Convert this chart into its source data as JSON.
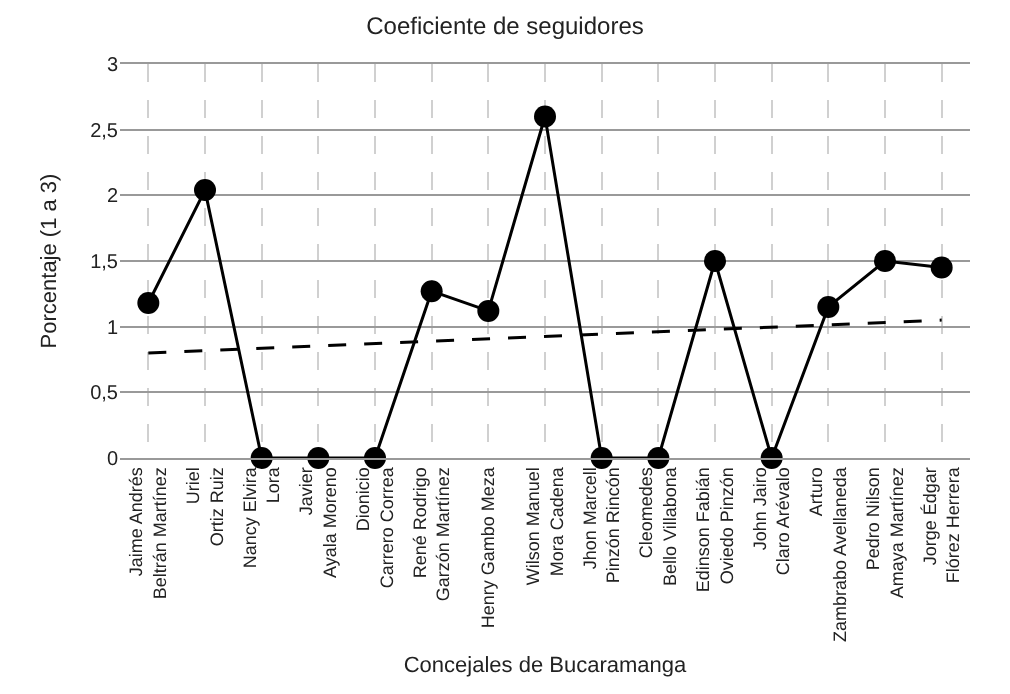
{
  "chart_data": {
    "type": "line",
    "title": "Coeficiente de seguidores",
    "xlabel": "Concejales de Bucaramanga",
    "ylabel": "Porcentaje (1 a 3)",
    "categories": [
      "Jaime Andrés\nBeltrán Martínez",
      "Uriel\nOrtiz Ruiz",
      "Nancy Elvira\nLora",
      "Javier\nAyala Moreno",
      "Dionicio\nCarrero Correa",
      "René Rodrigo\nGarzón Martínez",
      "Henry Gambo Meza",
      "Wilson Manuel\nMora Cadena",
      "Jhon Marcell\nPinzón Rincón",
      "Cleomedes\nBello Villabona",
      "Edinson Fabián\nOviedo Pinzón",
      "John Jairo\nClaro Arévalo",
      "Arturo\nZambrabo Avellaneda",
      "Pedro Nilson\nAmaya Martínez",
      "Jorge Édgar\nFlórez Herrera"
    ],
    "series": [
      {
        "color": "#000000",
        "marker": "circle",
        "line_style": "solid",
        "values": [
          1.18,
          2.04,
          0,
          0,
          0,
          1.27,
          1.12,
          2.6,
          0,
          0,
          1.5,
          0,
          1.15,
          1.5,
          1.45
        ]
      },
      {
        "type": "line",
        "color": "#000000",
        "marker": "none",
        "line_style": "dashed",
        "x": [
          "Jaime Andrés\nBeltrán Martínez",
          "Jorge Édgar\nFlórez Herrera"
        ],
        "values": [
          0.8,
          1.05
        ]
      }
    ],
    "ylim": [
      0,
      3
    ],
    "yticks": [
      {
        "value": 0,
        "label": "0"
      },
      {
        "value": 0.5,
        "label": "0,5"
      },
      {
        "value": 1,
        "label": "1"
      },
      {
        "value": 1.5,
        "label": "1,5"
      },
      {
        "value": 2,
        "label": "2"
      },
      {
        "value": 2.5,
        "label": "2,5"
      },
      {
        "value": 3,
        "label": "3"
      }
    ],
    "grid": true
  }
}
